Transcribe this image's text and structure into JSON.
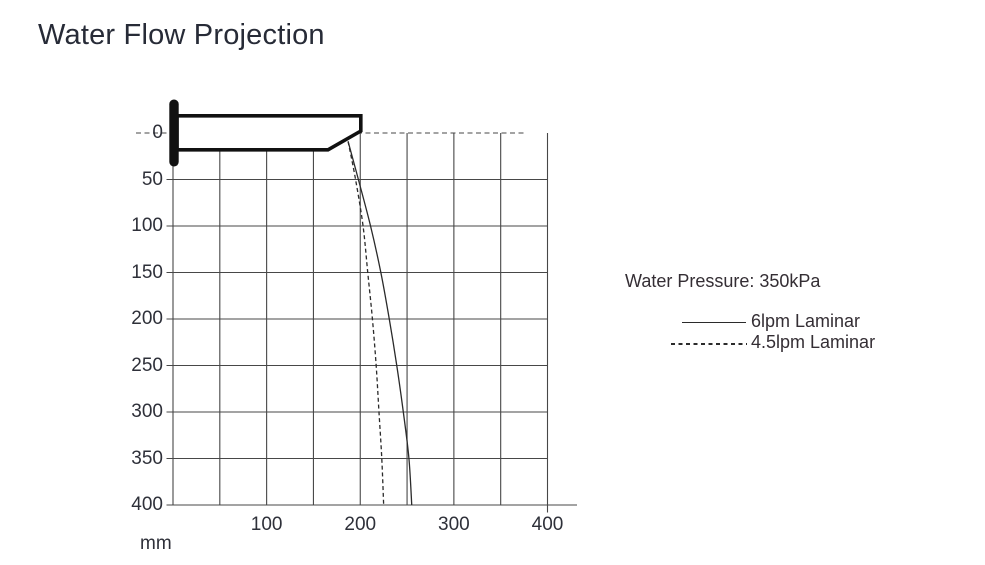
{
  "title": "Water Flow Projection",
  "legend": {
    "pressure_label": "Water Pressure: 350kPa",
    "entries": [
      {
        "label": "6lpm Laminar",
        "style": "solid"
      },
      {
        "label": "4.5lpm Laminar",
        "style": "dashed"
      }
    ]
  },
  "chart_data": {
    "type": "line",
    "title": "Water Flow Projection",
    "xlabel": "mm",
    "ylabel": "mm",
    "unit_label": "mm",
    "xlim": [
      0,
      400
    ],
    "ylim": [
      0,
      400
    ],
    "x_ticks": [
      100,
      200,
      300,
      400
    ],
    "y_ticks": [
      0,
      50,
      100,
      150,
      200,
      250,
      300,
      350,
      400
    ],
    "grid": true,
    "zero_line_style": "dashed",
    "y_axis_direction": "downward",
    "legend_position": "right",
    "series": [
      {
        "name": "6lpm Laminar",
        "style": "solid",
        "points_mm": [
          [
            187,
            9
          ],
          [
            198,
            50
          ],
          [
            211,
            100
          ],
          [
            222,
            150
          ],
          [
            231,
            200
          ],
          [
            239,
            250
          ],
          [
            246,
            300
          ],
          [
            252,
            350
          ],
          [
            255,
            400
          ]
        ]
      },
      {
        "name": "4.5lpm Laminar",
        "style": "dashed",
        "points_mm": [
          [
            187,
            9
          ],
          [
            195,
            50
          ],
          [
            203,
            100
          ],
          [
            208,
            150
          ],
          [
            213,
            200
          ],
          [
            217,
            250
          ],
          [
            220,
            300
          ],
          [
            223,
            350
          ],
          [
            225,
            400
          ]
        ]
      }
    ]
  }
}
